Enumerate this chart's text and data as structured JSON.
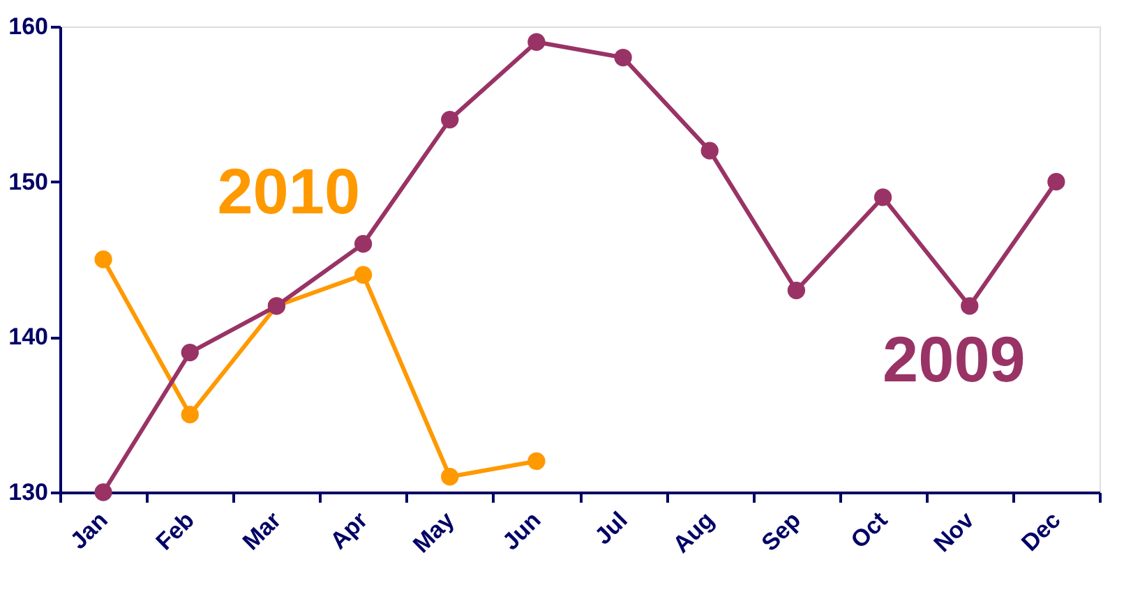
{
  "chart_data": {
    "type": "line",
    "categories": [
      "Jan",
      "Feb",
      "Mar",
      "Apr",
      "May",
      "Jun",
      "Jul",
      "Aug",
      "Sep",
      "Oct",
      "Nov",
      "Dec"
    ],
    "series": [
      {
        "name": "2009",
        "color": "#993366",
        "values": [
          130,
          139,
          142,
          146,
          154,
          159,
          158,
          152,
          143,
          149,
          142,
          150
        ]
      },
      {
        "name": "2010",
        "color": "#ff9900",
        "values": [
          145,
          135,
          142,
          144,
          131,
          132,
          null,
          null,
          null,
          null,
          null,
          null
        ]
      }
    ],
    "ylim": [
      130,
      160
    ],
    "yticks": [
      130,
      140,
      150,
      160
    ],
    "grid": false,
    "marker": "circle",
    "line_style": "solid"
  }
}
